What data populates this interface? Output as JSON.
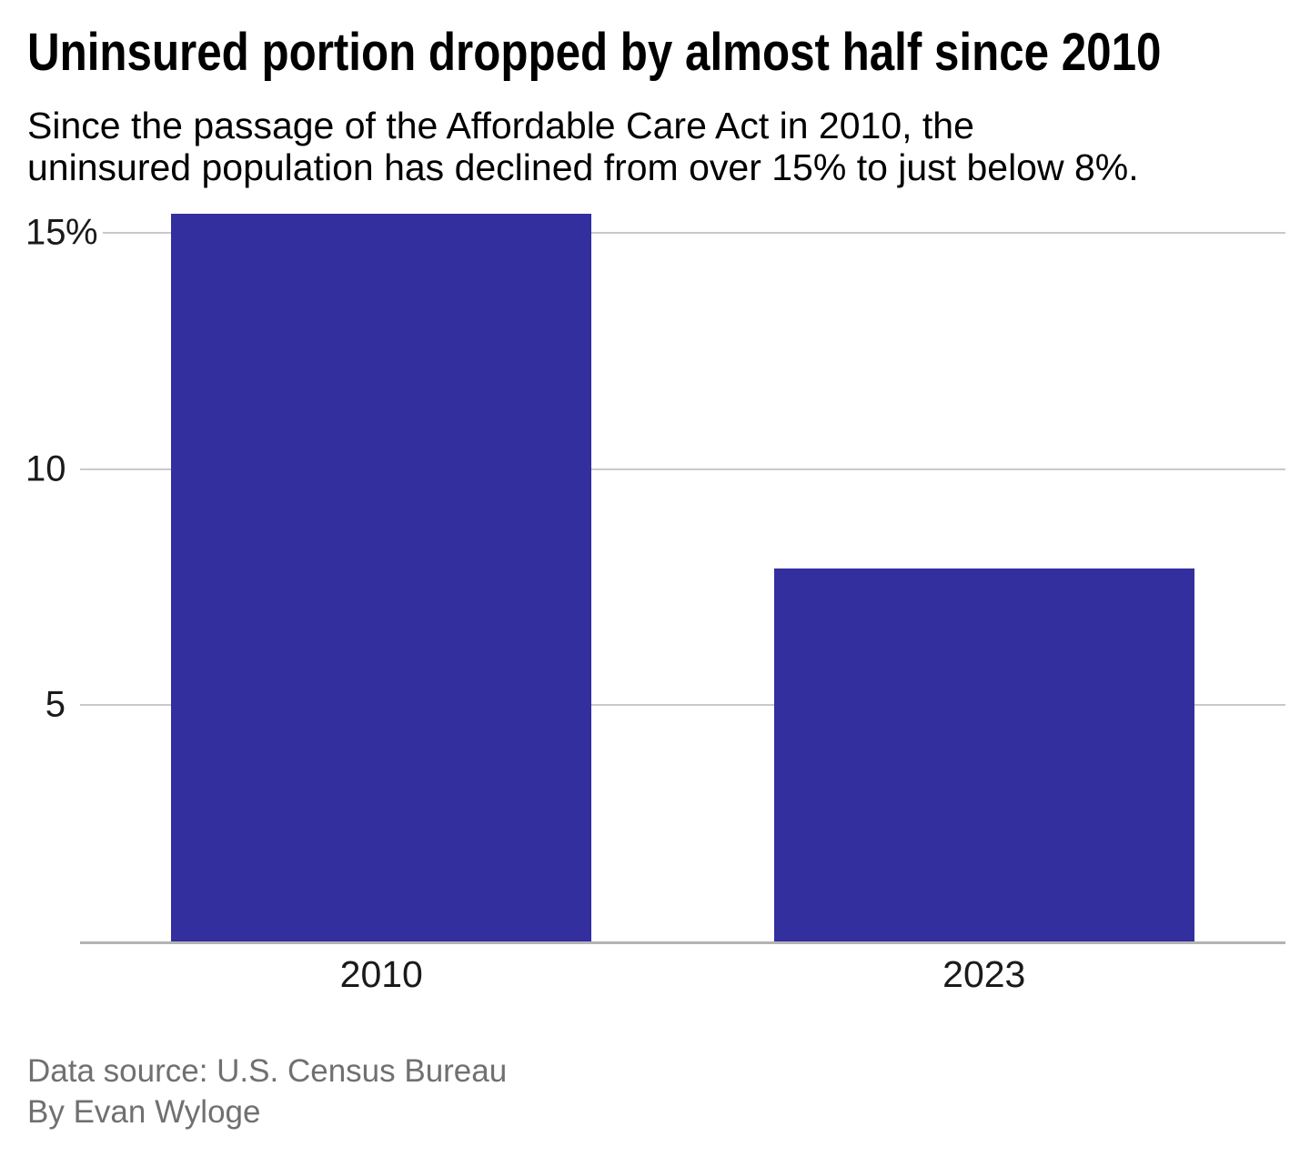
{
  "header": {
    "title": "Uninsured portion dropped by almost half since 2010",
    "subtitle_lines": [
      "Since the passage of the Affordable Care Act in 2010, the",
      "uninsured population has declined from over 15% to just below 8%."
    ]
  },
  "chart_data": {
    "type": "bar",
    "title": "Uninsured portion dropped by almost half since 2010",
    "subtitle": "Since the passage of the Affordable Care Act in 2010, the uninsured population has declined from over 15% to just below 8%.",
    "categories": [
      "2010",
      "2023"
    ],
    "values": [
      15.4,
      7.9
    ],
    "xlabel": "",
    "ylabel": "",
    "ylim": [
      0,
      15.4
    ],
    "y_ticks": [
      {
        "value": 15,
        "label": "15",
        "suffix": "%"
      },
      {
        "value": 10,
        "label": "10",
        "suffix": ""
      },
      {
        "value": 5,
        "label": "5",
        "suffix": ""
      }
    ],
    "grid": true,
    "legend": "none",
    "bar_color": "#332f9e",
    "gridline_color": "#c9c9c9",
    "baseline_color": "#b3b3b3",
    "bar_width_pct": 34.9
  },
  "footer": {
    "source": "Data source: U.S. Census Bureau",
    "byline": "By Evan Wyloge"
  }
}
